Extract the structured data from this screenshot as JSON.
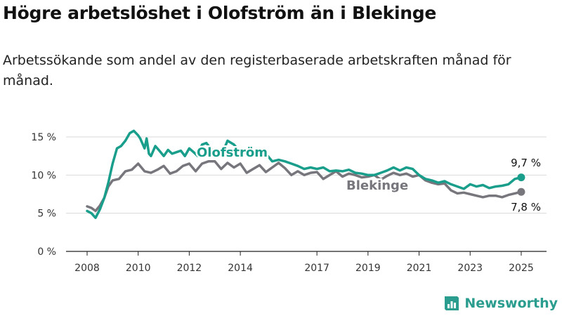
{
  "title": "Högre arbetslöshet i Olofström än i Blekinge",
  "subtitle": "Arbetssökande som andel av den registerbaserade arbetskraften månad för månad.",
  "brand": "Newsworthy",
  "colors": {
    "olofstrom": "#1a9e8c",
    "blekinge": "#77767c"
  },
  "chart_data": {
    "type": "line",
    "ylim": [
      0,
      15
    ],
    "yticks": [
      0,
      5,
      10,
      15
    ],
    "ytick_labels": [
      "0 %",
      "5 %",
      "10 %",
      "15 %"
    ],
    "xlim": [
      2008.0,
      2025.25
    ],
    "xticks": [
      2008,
      2010,
      2012,
      2014,
      2017,
      2019,
      2021,
      2023,
      2025
    ],
    "xtick_labels": [
      "2008",
      "2010",
      "2012",
      "2014",
      "2017",
      "2019",
      "2021",
      "2023",
      "2025"
    ],
    "series": [
      {
        "name": "Olofström",
        "end_label": "9,7 %",
        "x": [
          2008.0,
          2008.17,
          2008.33,
          2008.5,
          2008.67,
          2008.83,
          2009.0,
          2009.17,
          2009.33,
          2009.5,
          2009.67,
          2009.83,
          2010.0,
          2010.08,
          2010.25,
          2010.33,
          2010.42,
          2010.5,
          2010.67,
          2010.83,
          2011.0,
          2011.17,
          2011.33,
          2011.5,
          2011.67,
          2011.83,
          2012.0,
          2012.17,
          2012.33,
          2012.5,
          2012.67,
          2012.83,
          2013.0,
          2013.25,
          2013.5,
          2013.75,
          2014.0,
          2014.25,
          2014.5,
          2014.75,
          2015.0,
          2015.25,
          2015.5,
          2015.75,
          2016.0,
          2016.25,
          2016.5,
          2016.75,
          2017.0,
          2017.25,
          2017.5,
          2017.75,
          2018.0,
          2018.25,
          2018.5,
          2018.75,
          2019.0,
          2019.25,
          2019.5,
          2019.75,
          2020.0,
          2020.25,
          2020.5,
          2020.75,
          2021.0,
          2021.25,
          2021.5,
          2021.75,
          2022.0,
          2022.25,
          2022.5,
          2022.75,
          2023.0,
          2023.25,
          2023.5,
          2023.75,
          2024.0,
          2024.25,
          2024.5,
          2024.75,
          2025.0
        ],
        "values": [
          5.3,
          5.0,
          4.4,
          5.5,
          7.0,
          9.0,
          11.5,
          13.5,
          13.8,
          14.5,
          15.5,
          15.8,
          15.2,
          14.8,
          13.5,
          14.8,
          12.8,
          12.5,
          13.8,
          13.2,
          12.5,
          13.3,
          12.8,
          13.0,
          13.2,
          12.5,
          13.5,
          13.0,
          12.5,
          14.0,
          14.2,
          13.5,
          13.0,
          12.5,
          14.5,
          14.0,
          13.0,
          12.8,
          13.3,
          12.5,
          12.8,
          11.8,
          12.0,
          11.8,
          11.5,
          11.2,
          10.8,
          11.0,
          10.8,
          11.0,
          10.5,
          10.6,
          10.5,
          10.7,
          10.3,
          10.2,
          10.0,
          10.0,
          10.3,
          10.6,
          11.0,
          10.6,
          11.0,
          10.8,
          10.0,
          9.5,
          9.3,
          9.0,
          9.2,
          8.8,
          8.5,
          8.2,
          8.8,
          8.5,
          8.7,
          8.3,
          8.5,
          8.6,
          8.8,
          9.5,
          9.7
        ]
      },
      {
        "name": "Blekinge",
        "end_label": "7,8 %",
        "x": [
          2008.0,
          2008.17,
          2008.33,
          2008.5,
          2008.67,
          2008.83,
          2009.0,
          2009.25,
          2009.5,
          2009.75,
          2010.0,
          2010.25,
          2010.5,
          2010.75,
          2011.0,
          2011.25,
          2011.5,
          2011.75,
          2012.0,
          2012.25,
          2012.5,
          2012.75,
          2013.0,
          2013.25,
          2013.5,
          2013.75,
          2014.0,
          2014.25,
          2014.5,
          2014.75,
          2015.0,
          2015.25,
          2015.5,
          2015.75,
          2016.0,
          2016.25,
          2016.5,
          2016.75,
          2017.0,
          2017.25,
          2017.5,
          2017.75,
          2018.0,
          2018.25,
          2018.5,
          2018.75,
          2019.0,
          2019.25,
          2019.5,
          2019.75,
          2020.0,
          2020.25,
          2020.5,
          2020.75,
          2021.0,
          2021.25,
          2021.5,
          2021.75,
          2022.0,
          2022.25,
          2022.5,
          2022.75,
          2023.0,
          2023.25,
          2023.5,
          2023.75,
          2024.0,
          2024.25,
          2024.5,
          2024.75,
          2025.0
        ],
        "values": [
          5.9,
          5.7,
          5.3,
          6.0,
          7.0,
          8.5,
          9.3,
          9.5,
          10.5,
          10.7,
          11.5,
          10.5,
          10.3,
          10.7,
          11.2,
          10.2,
          10.5,
          11.2,
          11.5,
          10.5,
          11.5,
          11.8,
          11.8,
          10.8,
          11.6,
          11.0,
          11.5,
          10.3,
          10.8,
          11.3,
          10.4,
          11.0,
          11.6,
          10.9,
          10.0,
          10.5,
          10.0,
          10.3,
          10.4,
          9.5,
          10.0,
          10.5,
          9.8,
          10.2,
          10.0,
          9.7,
          9.8,
          10.0,
          9.4,
          9.9,
          10.3,
          10.0,
          10.2,
          9.8,
          10.0,
          9.3,
          9.0,
          8.8,
          8.9,
          8.0,
          7.6,
          7.7,
          7.5,
          7.3,
          7.1,
          7.3,
          7.3,
          7.1,
          7.4,
          7.6,
          7.8
        ]
      }
    ]
  }
}
